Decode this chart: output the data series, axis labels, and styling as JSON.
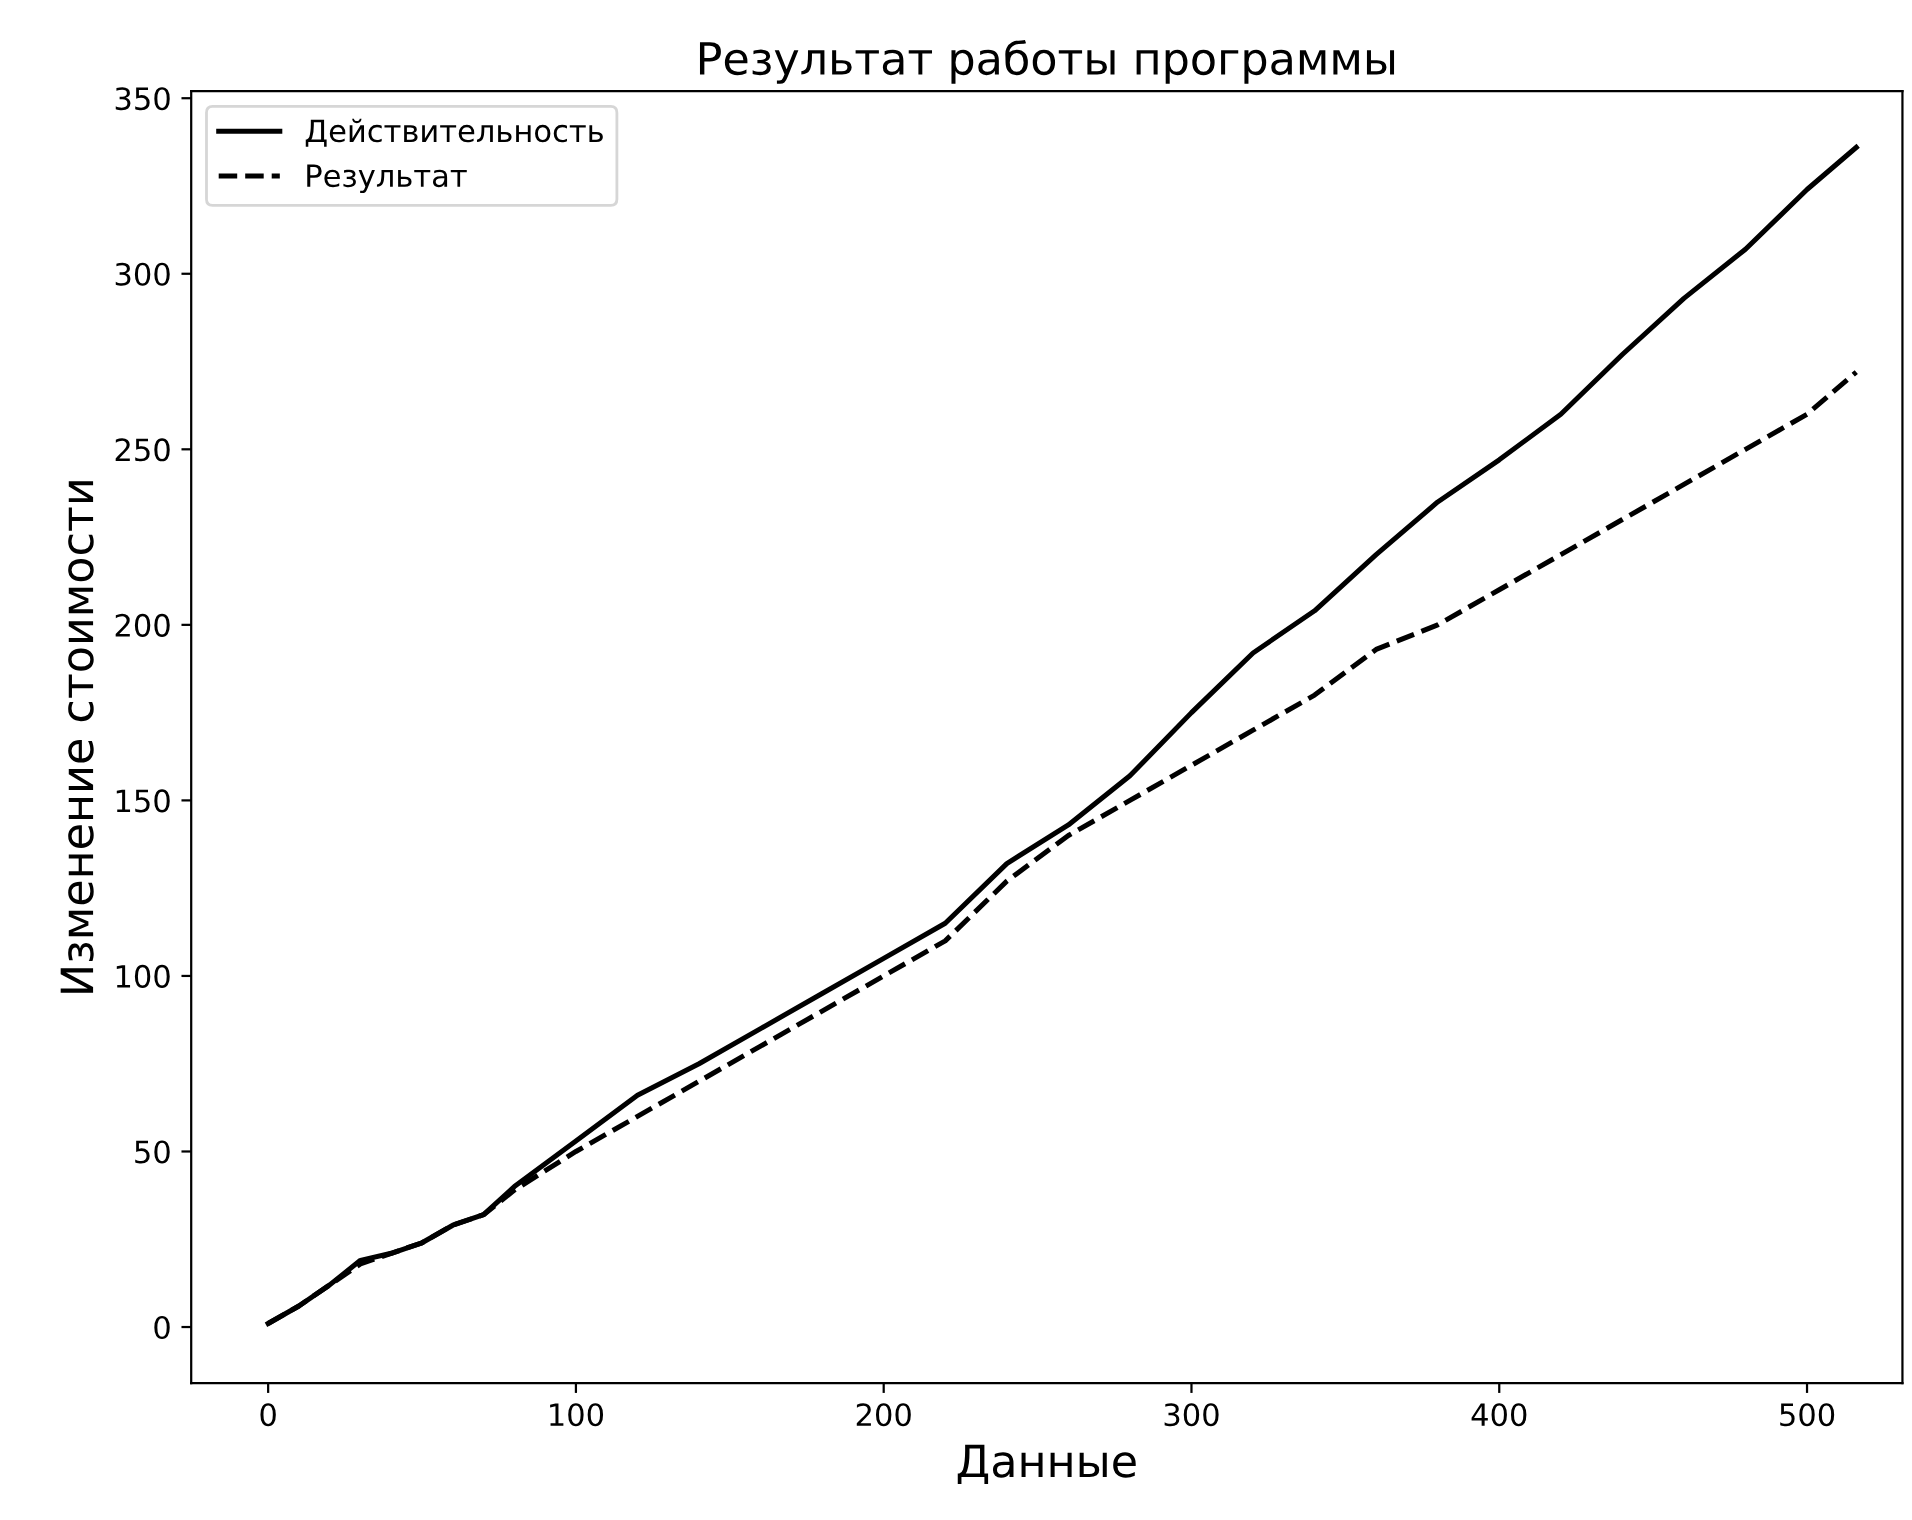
{
  "chart_data": {
    "type": "line",
    "title": "Результат работы программы",
    "xlabel": "Данные",
    "ylabel": "Изменение стоимости",
    "xlim": [
      -25,
      531
    ],
    "ylim": [
      -16,
      352
    ],
    "xticks": [
      0,
      100,
      200,
      300,
      400,
      500
    ],
    "yticks": [
      0,
      50,
      100,
      150,
      200,
      250,
      300,
      350
    ],
    "grid": false,
    "legend": "top left",
    "marker": "none",
    "series": [
      {
        "name": "Действительность",
        "color": "#000000",
        "line_style": "solid",
        "x": [
          0,
          10,
          20,
          30,
          40,
          50,
          60,
          70,
          80,
          100,
          120,
          140,
          160,
          180,
          200,
          220,
          240,
          260,
          280,
          300,
          320,
          340,
          360,
          380,
          400,
          420,
          440,
          460,
          480,
          500,
          516
        ],
        "values": [
          1,
          6,
          12,
          19,
          21,
          24,
          29,
          32,
          40,
          53,
          66,
          75,
          85,
          95,
          105,
          115,
          132,
          143,
          157,
          175,
          192,
          204,
          220,
          235,
          247,
          260,
          277,
          293,
          307,
          324,
          336
        ]
      },
      {
        "name": "Результат",
        "color": "#000000",
        "line_style": "dashed",
        "x": [
          0,
          10,
          20,
          30,
          40,
          50,
          60,
          70,
          80,
          100,
          120,
          140,
          160,
          180,
          200,
          220,
          240,
          260,
          280,
          300,
          320,
          340,
          360,
          380,
          400,
          420,
          440,
          460,
          480,
          500,
          516
        ],
        "values": [
          1,
          6,
          12,
          18,
          21,
          24,
          29,
          32,
          39,
          50,
          60,
          70,
          80,
          90,
          100,
          110,
          127,
          140,
          150,
          160,
          170,
          180,
          193,
          200,
          210,
          220,
          230,
          240,
          250,
          260,
          272
        ]
      }
    ]
  }
}
